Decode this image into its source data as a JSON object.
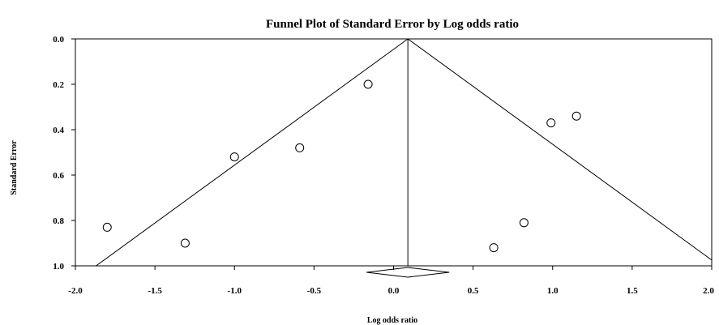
{
  "chart_data": {
    "type": "scatter",
    "title": "Funnel Plot of Standard Error by Log odds ratio",
    "xlabel": "Log odds ratio",
    "ylabel": "Standard Error",
    "xlim": [
      -2.0,
      2.0
    ],
    "ylim": [
      0.0,
      1.0
    ],
    "y_inverted": true,
    "x_ticks": [
      "-2.0",
      "-1.5",
      "-1.0",
      "-0.5",
      "0.0",
      "0.5",
      "1.0",
      "1.5",
      "2.0"
    ],
    "y_ticks": [
      "0.0",
      "0.2",
      "0.4",
      "0.6",
      "0.8",
      "1.0"
    ],
    "grid": false,
    "legend": "none",
    "pooled_estimate": 0.09,
    "funnel_z": 1.96,
    "summary_diamond": {
      "center": 0.09,
      "lower": -0.17,
      "upper": 0.35
    },
    "points": [
      {
        "x": -0.16,
        "y": 0.2
      },
      {
        "x": -0.59,
        "y": 0.48
      },
      {
        "x": -1.0,
        "y": 0.52
      },
      {
        "x": -1.8,
        "y": 0.83
      },
      {
        "x": -1.31,
        "y": 0.9
      },
      {
        "x": 0.99,
        "y": 0.37
      },
      {
        "x": 1.15,
        "y": 0.34
      },
      {
        "x": 0.82,
        "y": 0.81
      },
      {
        "x": 0.63,
        "y": 0.92
      }
    ],
    "colors": {
      "axis": "#000000",
      "marker_fill": "#ffffff",
      "marker_stroke": "#000000"
    }
  }
}
